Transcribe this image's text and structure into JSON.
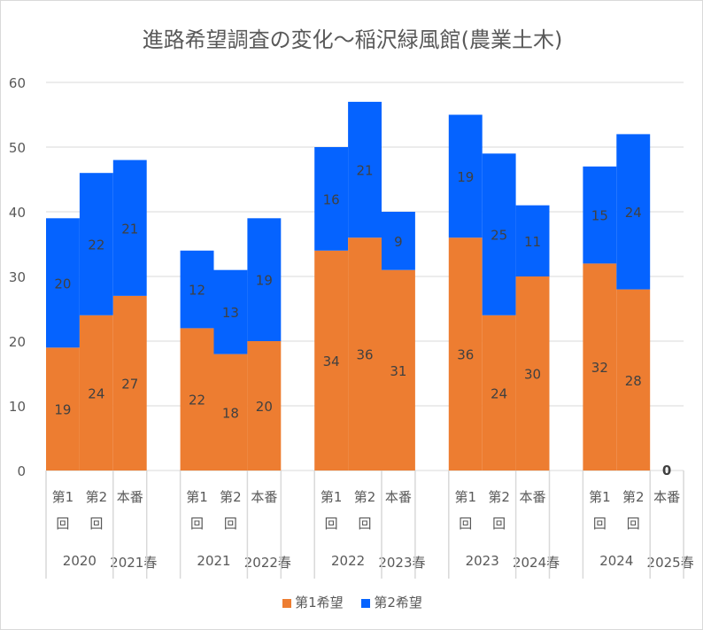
{
  "chart_data": {
    "type": "bar",
    "stacked": true,
    "title": "進路希望調査の変化～稲沢緑風館(農業土木)",
    "ylim": [
      0,
      60
    ],
    "yticks": [
      0,
      10,
      20,
      30,
      40,
      50,
      60
    ],
    "groups": [
      {
        "year": "2020",
        "spring": "2021春",
        "bars": [
          {
            "label": "第1回",
            "s1": 19,
            "s2": 20
          },
          {
            "label": "第2回",
            "s1": 24,
            "s2": 22
          },
          {
            "label": "本番",
            "s1": 27,
            "s2": 21
          }
        ]
      },
      {
        "year": "2021",
        "spring": "2022春",
        "bars": [
          {
            "label": "第1回",
            "s1": 22,
            "s2": 12
          },
          {
            "label": "第2回",
            "s1": 18,
            "s2": 13
          },
          {
            "label": "本番",
            "s1": 20,
            "s2": 19
          }
        ]
      },
      {
        "year": "2022",
        "spring": "2023春",
        "bars": [
          {
            "label": "第1回",
            "s1": 34,
            "s2": 16
          },
          {
            "label": "第2回",
            "s1": 36,
            "s2": 21
          },
          {
            "label": "本番",
            "s1": 31,
            "s2": 9
          }
        ]
      },
      {
        "year": "2023",
        "spring": "2024春",
        "bars": [
          {
            "label": "第1回",
            "s1": 36,
            "s2": 19
          },
          {
            "label": "第2回",
            "s1": 24,
            "s2": 25
          },
          {
            "label": "本番",
            "s1": 30,
            "s2": 11
          }
        ]
      },
      {
        "year": "2024",
        "spring": "2025春",
        "bars": [
          {
            "label": "第1回",
            "s1": 32,
            "s2": 15
          },
          {
            "label": "第2回",
            "s1": 28,
            "s2": 24
          },
          {
            "label": "本番",
            "s1": 0,
            "s2": null
          }
        ]
      }
    ],
    "series": [
      {
        "name": "第1希望",
        "color": "#ED7D31"
      },
      {
        "name": "第2希望",
        "color": "#0563FF"
      }
    ],
    "legend_position": "bottom"
  }
}
